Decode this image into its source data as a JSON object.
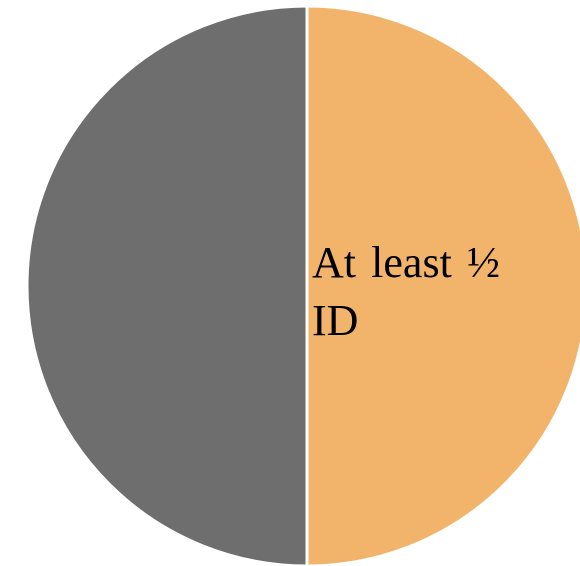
{
  "chart_data": {
    "type": "pie",
    "categories": [
      "At least ½ ID",
      null
    ],
    "values": [
      50,
      50
    ],
    "colors": [
      "#f2b46b",
      "#6e6e6e"
    ]
  }
}
